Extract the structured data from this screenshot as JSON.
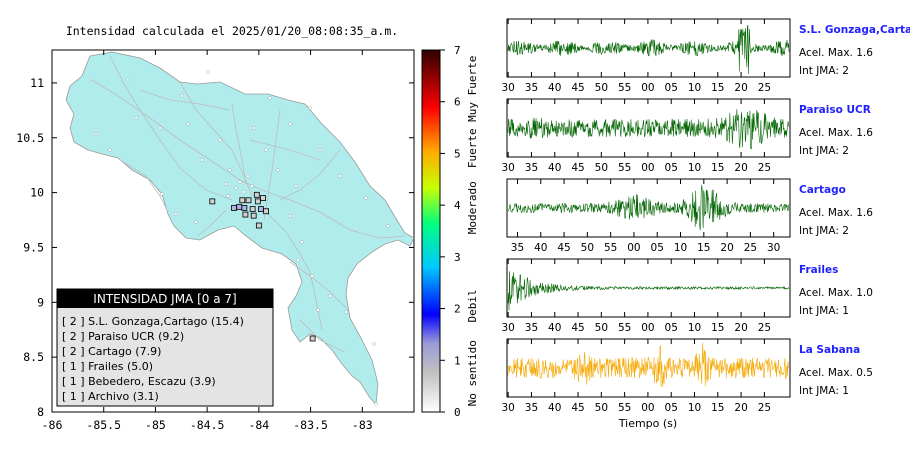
{
  "map": {
    "title": "Intensidad calculada el 2025/01/20_08:08:35_a.m.",
    "x_ticks": [
      "-86",
      "-85.5",
      "-85",
      "-84.5",
      "-84",
      "-83.5",
      "-83"
    ],
    "y_ticks": [
      "11",
      "10.5",
      "10",
      "9.5",
      "9",
      "8.5",
      "8"
    ],
    "xlim": [
      -86,
      -82.5
    ],
    "ylim": [
      8,
      11.3
    ],
    "land_color": "#b0ecec",
    "colorbar": {
      "range": [
        0,
        7
      ],
      "ticks": [
        "0",
        "1",
        "2",
        "3",
        "4",
        "5",
        "6",
        "7"
      ],
      "labels": [
        "No sentido",
        "Debil",
        "Moderado",
        "Fuerte",
        "Muy Fuerte"
      ]
    },
    "legend": {
      "title": "INTENSIDAD JMA [0 a 7]",
      "items": [
        "[ 2 ]  S.L. Gonzaga,Cartago (15.4)",
        "[ 2 ]  Paraiso UCR (9.2)",
        "[ 2 ]  Cartago (7.9)",
        "[ 1 ]  Frailes (5.0)",
        "[ 1 ]  Bebedero, Escazu (3.9)",
        "[ 1 ]  Archivo (3.1)"
      ]
    }
  },
  "waveforms": {
    "xlabel": "Tiempo (s)",
    "ticks_a": [
      "30",
      "35",
      "40",
      "45",
      "50",
      "55",
      "00",
      "05",
      "10",
      "15",
      "20",
      "25"
    ],
    "ticks_b": [
      "35",
      "40",
      "45",
      "50",
      "55",
      "00",
      "05",
      "10",
      "15",
      "20",
      "25",
      "30"
    ],
    "panels": [
      {
        "name": "S.L. Gonzaga,Cartago",
        "accel": "Acel. Max. 1.6",
        "int": "Int JMA: 2",
        "color": "#006400",
        "ticks": "a"
      },
      {
        "name": "Paraiso UCR",
        "accel": "Acel. Max. 1.6",
        "int": "Int JMA: 2",
        "color": "#006400",
        "ticks": "a"
      },
      {
        "name": "Cartago",
        "accel": "Acel. Max. 1.6",
        "int": "Int JMA: 2",
        "color": "#006400",
        "ticks": "b"
      },
      {
        "name": "Frailes",
        "accel": "Acel. Max. 1.0",
        "int": "Int JMA: 1",
        "color": "#006400",
        "ticks": "a"
      },
      {
        "name": "La Sabana",
        "accel": "Acel. Max. 0.5",
        "int": "Int JMA: 1",
        "color": "#f5a800",
        "ticks": "a"
      }
    ]
  },
  "chart_data": [
    {
      "type": "scatter",
      "title": "Intensidad calculada el 2025/01/20_08:08:35_a.m.",
      "xlim": [
        -86,
        -82.5
      ],
      "ylim": [
        8,
        11.3
      ],
      "colorbar_range": [
        0,
        7
      ],
      "stations": [
        {
          "lon": -84.24,
          "lat": 9.86,
          "intensity": 2
        },
        {
          "lon": -84.19,
          "lat": 9.87,
          "intensity": 2
        },
        {
          "lon": -84.14,
          "lat": 9.86,
          "intensity": 2
        },
        {
          "lon": -83.98,
          "lat": 9.85,
          "intensity": 2
        },
        {
          "lon": -84.16,
          "lat": 9.93,
          "intensity": 1
        },
        {
          "lon": -84.1,
          "lat": 9.93,
          "intensity": 1
        },
        {
          "lon": -84.02,
          "lat": 9.98,
          "intensity": 1
        },
        {
          "lon": -83.96,
          "lat": 9.95,
          "intensity": 1
        },
        {
          "lon": -84.06,
          "lat": 9.85,
          "intensity": 1
        },
        {
          "lon": -84.13,
          "lat": 9.8,
          "intensity": 1
        },
        {
          "lon": -84.05,
          "lat": 9.79,
          "intensity": 1
        },
        {
          "lon": -83.93,
          "lat": 9.83,
          "intensity": 1
        },
        {
          "lon": -84.01,
          "lat": 9.92,
          "intensity": 1
        },
        {
          "lon": -84.45,
          "lat": 9.92,
          "intensity": 1
        },
        {
          "lon": -84.0,
          "lat": 9.7,
          "intensity": 1
        },
        {
          "lon": -83.48,
          "lat": 8.67,
          "intensity": 1
        }
      ]
    },
    {
      "type": "line",
      "xlabel": "Tiempo (s)",
      "series": [
        {
          "name": "S.L. Gonzaga,Cartago",
          "peak_accel": 1.6,
          "jma_intensity": 2
        },
        {
          "name": "Paraiso UCR",
          "peak_accel": 1.6,
          "jma_intensity": 2
        },
        {
          "name": "Cartago",
          "peak_accel": 1.6,
          "jma_intensity": 2
        },
        {
          "name": "Frailes",
          "peak_accel": 1.0,
          "jma_intensity": 1
        },
        {
          "name": "La Sabana",
          "peak_accel": 0.5,
          "jma_intensity": 1
        }
      ]
    }
  ]
}
